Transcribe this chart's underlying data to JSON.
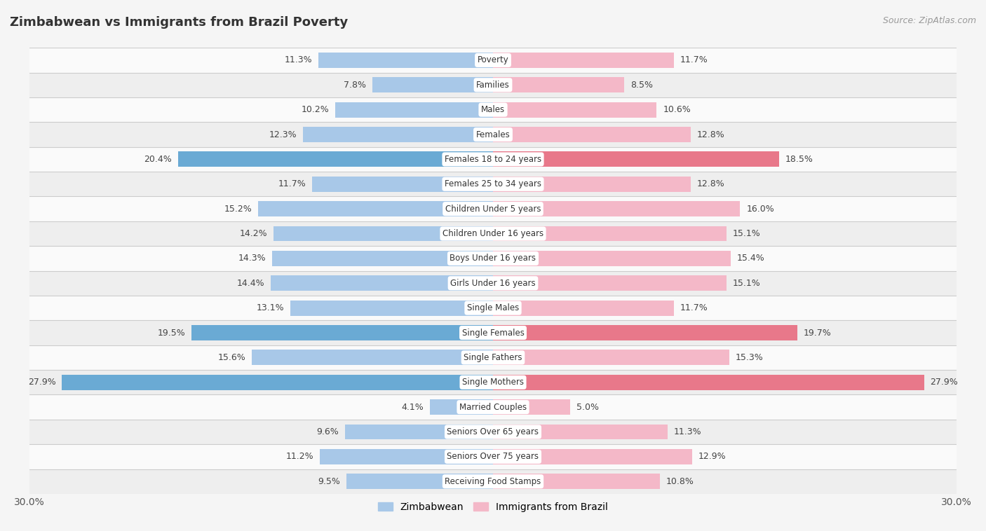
{
  "title": "Zimbabwean vs Immigrants from Brazil Poverty",
  "source": "Source: ZipAtlas.com",
  "categories": [
    "Poverty",
    "Families",
    "Males",
    "Females",
    "Females 18 to 24 years",
    "Females 25 to 34 years",
    "Children Under 5 years",
    "Children Under 16 years",
    "Boys Under 16 years",
    "Girls Under 16 years",
    "Single Males",
    "Single Females",
    "Single Fathers",
    "Single Mothers",
    "Married Couples",
    "Seniors Over 65 years",
    "Seniors Over 75 years",
    "Receiving Food Stamps"
  ],
  "zimbabwean": [
    11.3,
    7.8,
    10.2,
    12.3,
    20.4,
    11.7,
    15.2,
    14.2,
    14.3,
    14.4,
    13.1,
    19.5,
    15.6,
    27.9,
    4.1,
    9.6,
    11.2,
    9.5
  ],
  "brazil": [
    11.7,
    8.5,
    10.6,
    12.8,
    18.5,
    12.8,
    16.0,
    15.1,
    15.4,
    15.1,
    11.7,
    19.7,
    15.3,
    27.9,
    5.0,
    11.3,
    12.9,
    10.8
  ],
  "zim_color_normal": "#a8c8e8",
  "zim_color_highlight": "#6aaad4",
  "brazil_color_normal": "#f4b8c8",
  "brazil_color_highlight": "#e8788a",
  "highlight_rows": [
    4,
    11,
    13
  ],
  "bar_height": 0.62,
  "x_max": 30.0,
  "background_color": "#f5f5f5",
  "row_bg_light": "#fafafa",
  "row_bg_dark": "#eeeeee",
  "legend_zim_label": "Zimbabwean",
  "legend_brazil_label": "Immigrants from Brazil"
}
